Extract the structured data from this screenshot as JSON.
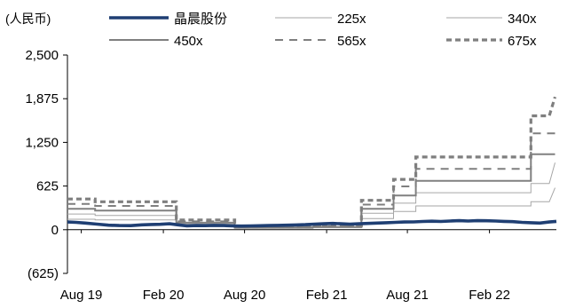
{
  "chart_data": {
    "type": "line",
    "unit_label": "(人民币)",
    "ylim": [
      -625,
      2500
    ],
    "yticks": [
      -625,
      0,
      625,
      1250,
      1875,
      2500
    ],
    "ytick_labels": [
      "(625)",
      "0",
      "625",
      "1,250",
      "1,875",
      "2,500"
    ],
    "xlim": [
      "2019-07-01",
      "2022-07-01"
    ],
    "xticks": [
      "2019-08-01",
      "2020-02-01",
      "2020-08-01",
      "2021-02-01",
      "2021-08-01",
      "2022-02-01"
    ],
    "xtick_labels": [
      "Aug 19",
      "Feb 20",
      "Aug 20",
      "Feb 21",
      "Aug 21",
      "Feb 22"
    ],
    "grid": false,
    "legend_position": "top",
    "series": [
      {
        "name": "晶晨股份",
        "color": "#1f3f73",
        "style": "solid-thick",
        "points": [
          [
            "2019-07-01",
            110
          ],
          [
            "2019-07-20",
            105
          ],
          [
            "2019-08-10",
            95
          ],
          [
            "2019-09-05",
            80
          ],
          [
            "2019-10-01",
            65
          ],
          [
            "2019-10-25",
            60
          ],
          [
            "2019-11-20",
            58
          ],
          [
            "2019-12-15",
            70
          ],
          [
            "2020-01-05",
            75
          ],
          [
            "2020-01-25",
            78
          ],
          [
            "2020-02-15",
            85
          ],
          [
            "2020-03-05",
            70
          ],
          [
            "2020-03-25",
            55
          ],
          [
            "2020-04-15",
            60
          ],
          [
            "2020-05-05",
            58
          ],
          [
            "2020-05-25",
            62
          ],
          [
            "2020-06-15",
            60
          ],
          [
            "2020-07-05",
            55
          ],
          [
            "2020-07-25",
            52
          ],
          [
            "2020-08-15",
            55
          ],
          [
            "2020-09-05",
            57
          ],
          [
            "2020-09-25",
            60
          ],
          [
            "2020-10-15",
            62
          ],
          [
            "2020-11-05",
            65
          ],
          [
            "2020-11-25",
            68
          ],
          [
            "2020-12-15",
            72
          ],
          [
            "2021-01-05",
            80
          ],
          [
            "2021-01-25",
            85
          ],
          [
            "2021-02-15",
            90
          ],
          [
            "2021-03-05",
            85
          ],
          [
            "2021-03-25",
            80
          ],
          [
            "2021-04-15",
            85
          ],
          [
            "2021-05-05",
            90
          ],
          [
            "2021-05-25",
            95
          ],
          [
            "2021-06-15",
            100
          ],
          [
            "2021-07-05",
            105
          ],
          [
            "2021-07-25",
            110
          ],
          [
            "2021-08-15",
            112
          ],
          [
            "2021-09-05",
            118
          ],
          [
            "2021-09-25",
            122
          ],
          [
            "2021-10-15",
            118
          ],
          [
            "2021-11-05",
            125
          ],
          [
            "2021-11-25",
            130
          ],
          [
            "2021-12-15",
            125
          ],
          [
            "2022-01-05",
            130
          ],
          [
            "2022-01-25",
            128
          ],
          [
            "2022-02-15",
            125
          ],
          [
            "2022-03-05",
            120
          ],
          [
            "2022-03-25",
            115
          ],
          [
            "2022-04-15",
            105
          ],
          [
            "2022-05-05",
            100
          ],
          [
            "2022-05-25",
            95
          ],
          [
            "2022-06-15",
            110
          ],
          [
            "2022-07-01",
            120
          ]
        ]
      },
      {
        "name": "225x",
        "color": "#a6a6a6",
        "style": "solid-thin",
        "points": [
          [
            "2019-07-01",
            150
          ],
          [
            "2019-09-01",
            150
          ],
          [
            "2019-09-01",
            140
          ],
          [
            "2020-03-01",
            140
          ],
          [
            "2020-03-01",
            60
          ],
          [
            "2020-07-10",
            60
          ],
          [
            "2020-07-10",
            20
          ],
          [
            "2021-01-01",
            20
          ],
          [
            "2021-01-01",
            30
          ],
          [
            "2021-04-20",
            30
          ],
          [
            "2021-04-20",
            160
          ],
          [
            "2021-07-01",
            160
          ],
          [
            "2021-07-01",
            260
          ],
          [
            "2021-08-20",
            260
          ],
          [
            "2021-08-20",
            340
          ],
          [
            "2022-05-05",
            340
          ],
          [
            "2022-05-05",
            400
          ],
          [
            "2022-06-15",
            400
          ],
          [
            "2022-06-28",
            600
          ]
        ]
      },
      {
        "name": "340x",
        "color": "#a6a6a6",
        "style": "solid-thin",
        "points": [
          [
            "2019-07-01",
            225
          ],
          [
            "2019-09-01",
            225
          ],
          [
            "2019-09-01",
            205
          ],
          [
            "2020-03-01",
            205
          ],
          [
            "2020-03-01",
            80
          ],
          [
            "2020-07-10",
            80
          ],
          [
            "2020-07-10",
            25
          ],
          [
            "2021-01-01",
            25
          ],
          [
            "2021-01-01",
            35
          ],
          [
            "2021-04-20",
            35
          ],
          [
            "2021-04-20",
            235
          ],
          [
            "2021-07-01",
            235
          ],
          [
            "2021-07-01",
            380
          ],
          [
            "2021-08-20",
            380
          ],
          [
            "2021-08-20",
            530
          ],
          [
            "2022-05-05",
            530
          ],
          [
            "2022-05-05",
            660
          ],
          [
            "2022-06-15",
            660
          ],
          [
            "2022-06-28",
            960
          ]
        ]
      },
      {
        "name": "450x",
        "color": "#808080",
        "style": "solid-medium",
        "points": [
          [
            "2019-07-01",
            300
          ],
          [
            "2019-09-01",
            300
          ],
          [
            "2019-09-01",
            275
          ],
          [
            "2020-03-01",
            275
          ],
          [
            "2020-03-01",
            100
          ],
          [
            "2020-07-10",
            100
          ],
          [
            "2020-07-10",
            30
          ],
          [
            "2021-01-01",
            30
          ],
          [
            "2021-01-01",
            40
          ],
          [
            "2021-04-20",
            40
          ],
          [
            "2021-04-20",
            300
          ],
          [
            "2021-07-01",
            300
          ],
          [
            "2021-07-01",
            490
          ],
          [
            "2021-08-20",
            490
          ],
          [
            "2021-08-20",
            700
          ],
          [
            "2022-05-05",
            700
          ],
          [
            "2022-05-05",
            1080
          ],
          [
            "2022-06-28",
            1080
          ]
        ]
      },
      {
        "name": "565x",
        "color": "#7f7f7f",
        "style": "dash",
        "points": [
          [
            "2019-07-01",
            370
          ],
          [
            "2019-09-01",
            370
          ],
          [
            "2019-09-01",
            340
          ],
          [
            "2020-03-01",
            340
          ],
          [
            "2020-03-01",
            120
          ],
          [
            "2020-07-10",
            120
          ],
          [
            "2020-07-10",
            40
          ],
          [
            "2021-01-01",
            40
          ],
          [
            "2021-01-01",
            50
          ],
          [
            "2021-04-20",
            50
          ],
          [
            "2021-04-20",
            360
          ],
          [
            "2021-07-01",
            360
          ],
          [
            "2021-07-01",
            620
          ],
          [
            "2021-08-20",
            620
          ],
          [
            "2021-08-20",
            870
          ],
          [
            "2022-05-05",
            870
          ],
          [
            "2022-05-05",
            1380
          ],
          [
            "2022-06-28",
            1380
          ]
        ]
      },
      {
        "name": "675x",
        "color": "#7f7f7f",
        "style": "dash-bold",
        "points": [
          [
            "2019-07-01",
            440
          ],
          [
            "2019-09-01",
            440
          ],
          [
            "2019-09-01",
            400
          ],
          [
            "2020-03-01",
            400
          ],
          [
            "2020-03-01",
            140
          ],
          [
            "2020-07-10",
            140
          ],
          [
            "2020-07-10",
            40
          ],
          [
            "2021-01-01",
            40
          ],
          [
            "2021-01-01",
            60
          ],
          [
            "2021-04-20",
            60
          ],
          [
            "2021-04-20",
            420
          ],
          [
            "2021-07-01",
            420
          ],
          [
            "2021-07-01",
            720
          ],
          [
            "2021-08-20",
            720
          ],
          [
            "2021-08-20",
            1040
          ],
          [
            "2022-05-05",
            1040
          ],
          [
            "2022-05-05",
            1630
          ],
          [
            "2022-06-15",
            1630
          ],
          [
            "2022-06-28",
            1900
          ]
        ]
      }
    ]
  }
}
